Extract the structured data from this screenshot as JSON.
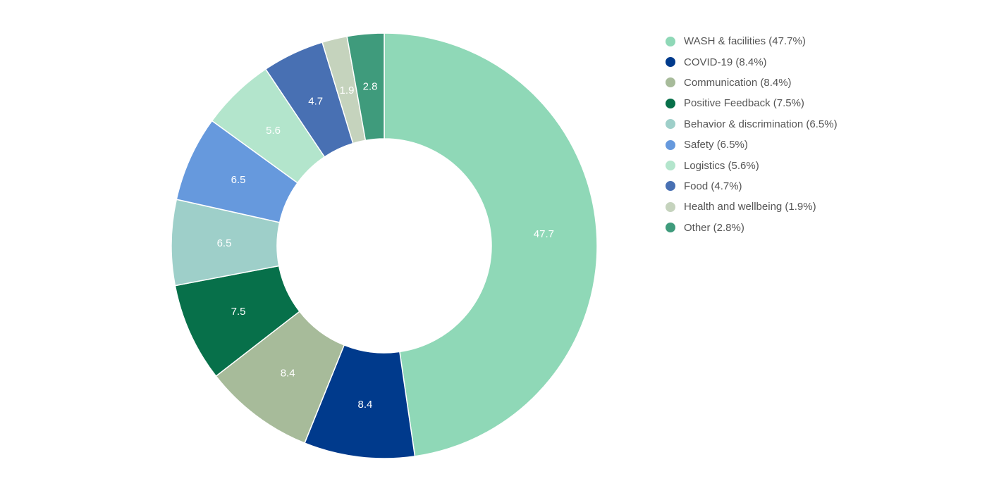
{
  "chart_data": {
    "type": "pie",
    "donut": true,
    "slices": [
      {
        "label": "WASH & facilities",
        "value": 47.7,
        "legend": "WASH & facilities (47.7%)",
        "data_label": "47.7",
        "color": "#8fd8b7",
        "label_color": "#ffffff"
      },
      {
        "label": "COVID-19",
        "value": 8.4,
        "legend": "COVID-19 (8.4%)",
        "data_label": "8.4",
        "color": "#003a8c",
        "label_color": "#ffffff"
      },
      {
        "label": "Communication",
        "value": 8.4,
        "legend": "Communication (8.4%)",
        "data_label": "8.4",
        "color": "#a7bb9a",
        "label_color": "#ffffff"
      },
      {
        "label": "Positive Feedback",
        "value": 7.5,
        "legend": "Positive Feedback (7.5%)",
        "data_label": "7.5",
        "color": "#07704a",
        "label_color": "#ffffff"
      },
      {
        "label": "Behavior & discrimination",
        "value": 6.5,
        "legend": "Behavior & discrimination (6.5%)",
        "data_label": "6.5",
        "color": "#9ecfc9",
        "label_color": "#ffffff"
      },
      {
        "label": "Safety",
        "value": 6.5,
        "legend": "Safety (6.5%)",
        "data_label": "6.5",
        "color": "#6699dd",
        "label_color": "#ffffff"
      },
      {
        "label": "Logistics",
        "value": 5.6,
        "legend": "Logistics (5.6%)",
        "data_label": "5.6",
        "color": "#b3e5cc",
        "label_color": "#ffffff"
      },
      {
        "label": "Food",
        "value": 4.7,
        "legend": "Food (4.7%)",
        "data_label": "4.7",
        "color": "#4870b3",
        "label_color": "#ffffff"
      },
      {
        "label": "Health and wellbeing",
        "value": 1.9,
        "legend": "Health and wellbeing (1.9%)",
        "data_label": "1.9",
        "color": "#c5d3bd",
        "label_color": "#ffffff"
      },
      {
        "label": "Other",
        "value": 2.8,
        "legend": "Other (2.8%)",
        "data_label": "2.8",
        "color": "#3f9b7c",
        "label_color": "#ffffff"
      }
    ],
    "legend_position": "right"
  }
}
